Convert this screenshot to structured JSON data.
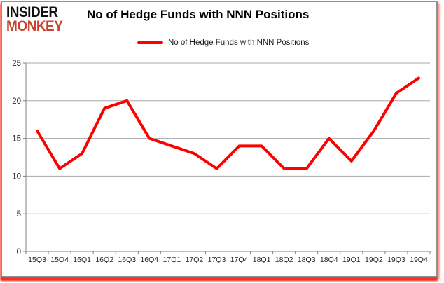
{
  "logo": {
    "line1": "INSIDER",
    "line2": "MONKEY"
  },
  "header": {
    "title": "No of Hedge Funds with NNN Positions"
  },
  "legend": {
    "label": "No of Hedge Funds with NNN Positions"
  },
  "colors": {
    "series_line": "#fe0000",
    "gridline": "#a8a8a8",
    "axis": "#808080",
    "tick_label": "#23232c",
    "logo_accent": "#c7432e",
    "frame_glow": "#ff0000"
  },
  "chart_data": {
    "type": "line",
    "title": "No of Hedge Funds with NNN Positions",
    "categories": [
      "15Q3",
      "15Q4",
      "16Q1",
      "16Q2",
      "16Q3",
      "16Q4",
      "17Q1",
      "17Q2",
      "17Q3",
      "17Q4",
      "18Q1",
      "18Q2",
      "18Q3",
      "18Q4",
      "19Q1",
      "19Q2",
      "19Q3",
      "19Q4"
    ],
    "series": [
      {
        "name": "No of Hedge Funds with NNN Positions",
        "color": "#fe0000",
        "values": [
          16,
          11,
          13,
          19,
          20,
          15,
          14,
          13,
          11,
          14,
          14,
          11,
          11,
          15,
          12,
          16,
          21,
          23
        ]
      }
    ],
    "xlabel": "",
    "ylabel": "",
    "ylim": [
      0,
      25
    ],
    "yticks": [
      0,
      5,
      10,
      15,
      20,
      25
    ],
    "grid": true,
    "legend_position": "top-center"
  }
}
